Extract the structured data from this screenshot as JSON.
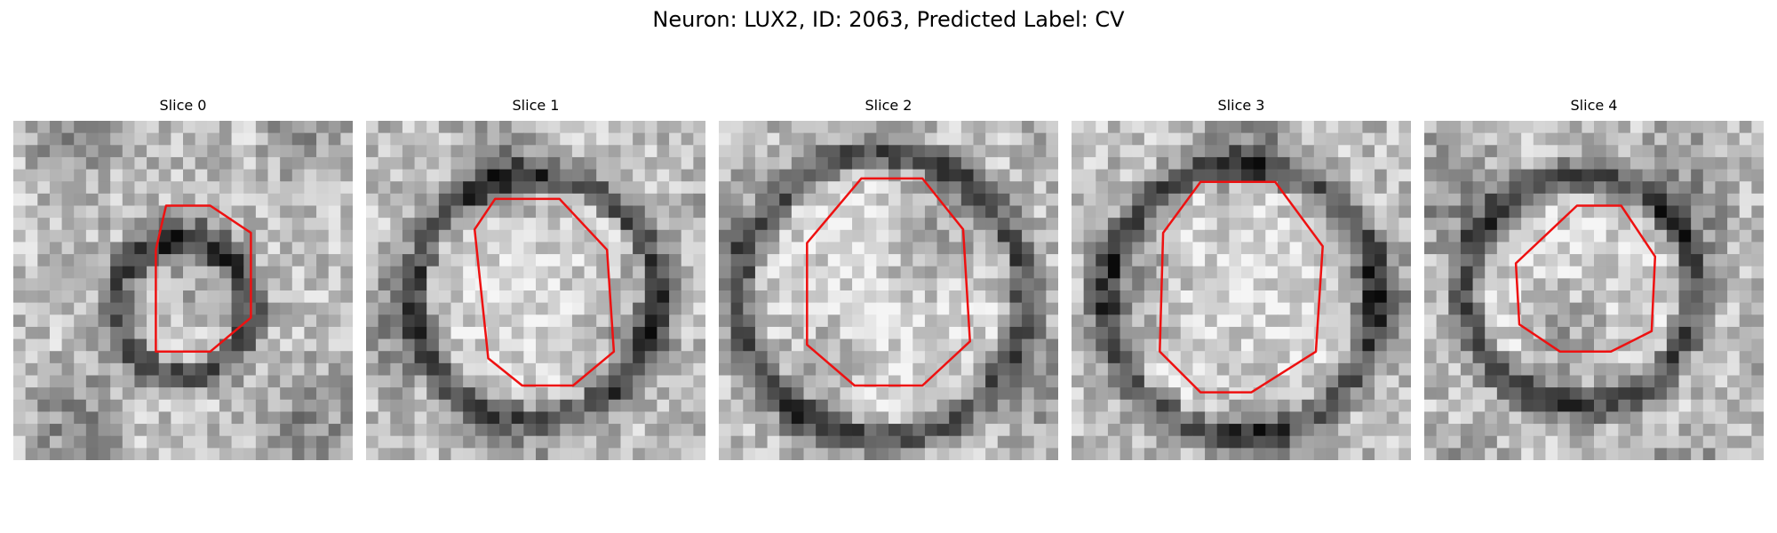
{
  "figure": {
    "title": "Neuron: LUX2, ID: 2063, Predicted Label: CV",
    "contour_color": "#ee1111"
  },
  "panels": [
    {
      "title": "Slice 0",
      "ring_radius": 0.2,
      "ring_center": [
        0.5,
        0.55
      ],
      "contour": [
        [
          0.45,
          0.25
        ],
        [
          0.58,
          0.25
        ],
        [
          0.7,
          0.33
        ],
        [
          0.7,
          0.58
        ],
        [
          0.58,
          0.68
        ],
        [
          0.42,
          0.68
        ],
        [
          0.42,
          0.38
        ]
      ]
    },
    {
      "title": "Slice 1",
      "ring_radius": 0.36,
      "ring_center": [
        0.5,
        0.52
      ],
      "contour": [
        [
          0.38,
          0.23
        ],
        [
          0.57,
          0.23
        ],
        [
          0.71,
          0.38
        ],
        [
          0.73,
          0.68
        ],
        [
          0.61,
          0.78
        ],
        [
          0.46,
          0.78
        ],
        [
          0.36,
          0.7
        ],
        [
          0.32,
          0.32
        ]
      ]
    },
    {
      "title": "Slice 2",
      "ring_radius": 0.42,
      "ring_center": [
        0.48,
        0.52
      ],
      "contour": [
        [
          0.42,
          0.17
        ],
        [
          0.6,
          0.17
        ],
        [
          0.72,
          0.32
        ],
        [
          0.74,
          0.65
        ],
        [
          0.6,
          0.78
        ],
        [
          0.4,
          0.78
        ],
        [
          0.26,
          0.66
        ],
        [
          0.26,
          0.36
        ]
      ]
    },
    {
      "title": "Slice 3",
      "ring_radius": 0.4,
      "ring_center": [
        0.5,
        0.53
      ],
      "contour": [
        [
          0.38,
          0.18
        ],
        [
          0.6,
          0.18
        ],
        [
          0.74,
          0.37
        ],
        [
          0.72,
          0.68
        ],
        [
          0.53,
          0.8
        ],
        [
          0.38,
          0.8
        ],
        [
          0.26,
          0.68
        ],
        [
          0.27,
          0.33
        ]
      ]
    },
    {
      "title": "Slice 4",
      "ring_radius": 0.34,
      "ring_center": [
        0.46,
        0.5
      ],
      "contour": [
        [
          0.45,
          0.25
        ],
        [
          0.58,
          0.25
        ],
        [
          0.68,
          0.4
        ],
        [
          0.67,
          0.62
        ],
        [
          0.55,
          0.68
        ],
        [
          0.4,
          0.68
        ],
        [
          0.28,
          0.6
        ],
        [
          0.27,
          0.42
        ]
      ]
    }
  ]
}
